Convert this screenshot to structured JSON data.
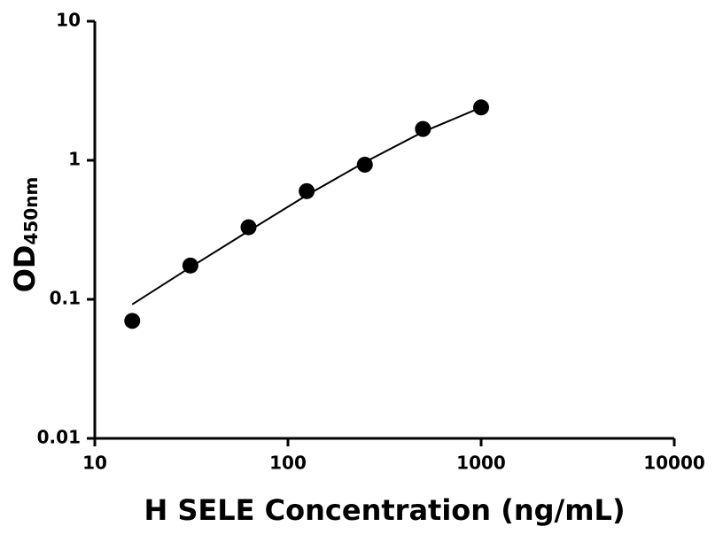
{
  "chart_data": {
    "type": "scatter",
    "x_label": "H SELE Concentration (ng/mL)",
    "y_label": "OD",
    "y_label_sub": "450nm",
    "log_x": true,
    "log_y": true,
    "xlim": [
      10,
      10000
    ],
    "xticks": [
      10,
      100,
      1000,
      10000
    ],
    "ylim": [
      0.01,
      10
    ],
    "yticks": [
      0.01,
      0.1,
      1,
      10
    ],
    "x": [
      15.625,
      31.25,
      62.5,
      125,
      250,
      500,
      1000
    ],
    "series": [
      {
        "color": "#000000",
        "marker": "circle",
        "values": [
          0.07,
          0.175,
          0.33,
          0.6,
          0.93,
          1.68,
          2.4
        ]
      },
      {
        "color": "#000000",
        "marker": "line",
        "values": [
          0.092,
          0.17,
          0.31,
          0.56,
          0.97,
          1.6,
          2.4
        ]
      }
    ]
  }
}
